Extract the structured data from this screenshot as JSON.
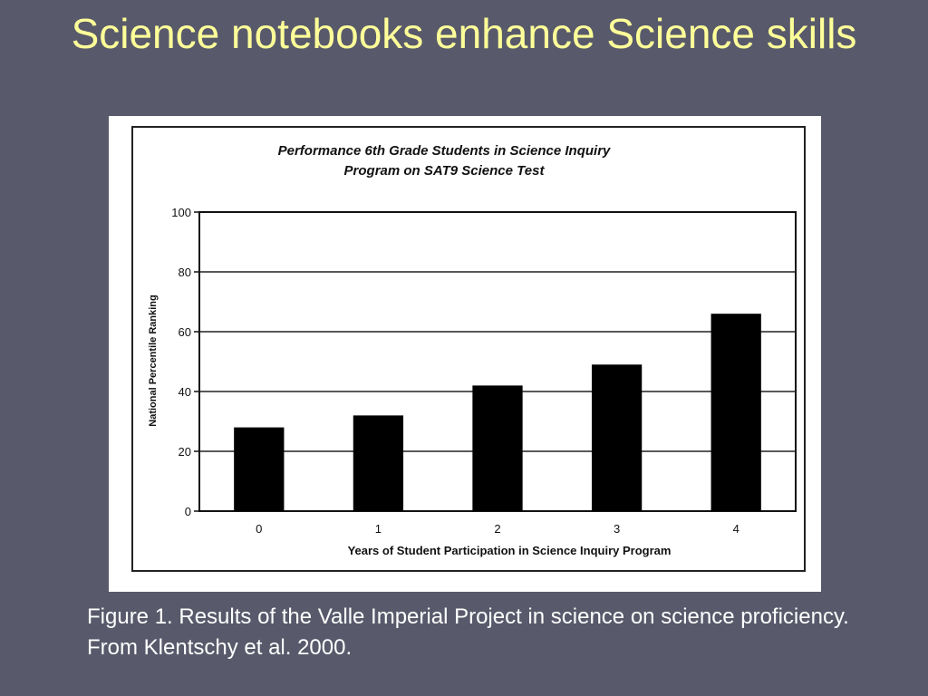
{
  "slide": {
    "title": "Science notebooks enhance Science skills",
    "caption": "Figure 1.  Results of the Valle Imperial Project in science on science proficiency.  From Klentschy et al. 2000."
  },
  "chart_data": {
    "type": "bar",
    "title_line1": "Performance 6th Grade Students in Science Inquiry",
    "title_line2": "Program on SAT9 Science Test",
    "xlabel": "Years of Student Participation in Science Inquiry Program",
    "ylabel": "National Percentile Ranking",
    "categories": [
      "0",
      "1",
      "2",
      "3",
      "4"
    ],
    "values": [
      28,
      32,
      42,
      49,
      66
    ],
    "ylim": [
      0,
      100
    ],
    "yticks": [
      0,
      20,
      40,
      60,
      80,
      100
    ],
    "grid": true,
    "bar_color": "#000000"
  }
}
